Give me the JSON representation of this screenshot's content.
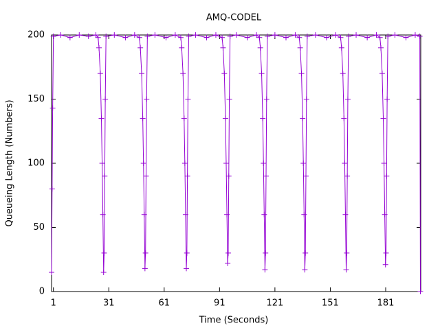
{
  "chart_data": {
    "type": "line",
    "title": "AMQ-CODEL",
    "x_label": "Time (Seconds)",
    "y_label": "Queueing Length (Numbers)",
    "xlim": [
      0,
      200
    ],
    "ylim": [
      0,
      200
    ],
    "xticks": [
      1,
      31,
      61,
      91,
      121,
      151,
      181
    ],
    "yticks": [
      0,
      50,
      100,
      150,
      200
    ],
    "x": [
      0,
      0.3,
      0.6,
      1,
      5,
      10,
      15,
      20,
      24,
      25.2,
      25.7,
      26.4,
      27,
      27.4,
      27.8,
      28.2,
      28.5,
      28.8,
      29.1,
      29.5,
      34,
      40,
      45,
      47.6,
      48.1,
      48.8,
      49.4,
      49.8,
      50.2,
      50.6,
      50.9,
      51.2,
      51.5,
      51.9,
      56,
      62,
      67,
      70,
      70.5,
      71.2,
      71.8,
      72.2,
      72.6,
      73,
      73.3,
      73.6,
      73.9,
      74.3,
      78,
      84,
      89,
      92.4,
      92.9,
      93.6,
      94.2,
      94.6,
      95,
      95.4,
      95.7,
      96,
      96.3,
      96.7,
      100,
      106,
      111,
      112.6,
      113.1,
      113.8,
      114.4,
      114.8,
      115.2,
      115.6,
      115.9,
      116.2,
      116.5,
      116.9,
      121,
      127,
      132,
      134.2,
      134.7,
      135.4,
      136,
      136.4,
      136.8,
      137.2,
      137.5,
      137.8,
      138.1,
      138.5,
      143,
      149,
      154,
      156.6,
      157.1,
      157.8,
      158.4,
      158.8,
      159.2,
      159.6,
      159.9,
      160.2,
      160.5,
      160.9,
      165,
      171,
      176,
      177.9,
      178.4,
      179.1,
      179.7,
      180.1,
      180.5,
      180.9,
      181.2,
      181.5,
      181.8,
      182.2,
      186,
      192,
      197,
      199.5,
      199.8
    ],
    "series": [
      {
        "color": "#9400d3",
        "values": [
          15,
          80,
          143,
          199,
          200,
          198,
          200,
          199,
          200,
          198,
          190,
          170,
          135,
          100,
          60,
          15,
          30,
          90,
          150,
          199,
          200,
          198,
          200,
          198,
          190,
          170,
          135,
          100,
          60,
          18,
          30,
          90,
          150,
          199,
          200,
          198,
          200,
          198,
          190,
          170,
          135,
          100,
          60,
          18,
          30,
          90,
          150,
          199,
          200,
          198,
          200,
          198,
          190,
          170,
          135,
          100,
          60,
          22,
          30,
          90,
          150,
          199,
          200,
          198,
          200,
          198,
          190,
          170,
          135,
          100,
          60,
          17,
          30,
          90,
          150,
          199,
          200,
          198,
          200,
          198,
          190,
          170,
          135,
          100,
          60,
          17,
          30,
          90,
          150,
          199,
          200,
          198,
          200,
          198,
          190,
          170,
          135,
          100,
          60,
          17,
          30,
          90,
          150,
          199,
          200,
          198,
          200,
          198,
          190,
          170,
          135,
          100,
          60,
          21,
          30,
          90,
          150,
          199,
          200,
          198,
          200,
          199,
          0
        ]
      }
    ]
  }
}
